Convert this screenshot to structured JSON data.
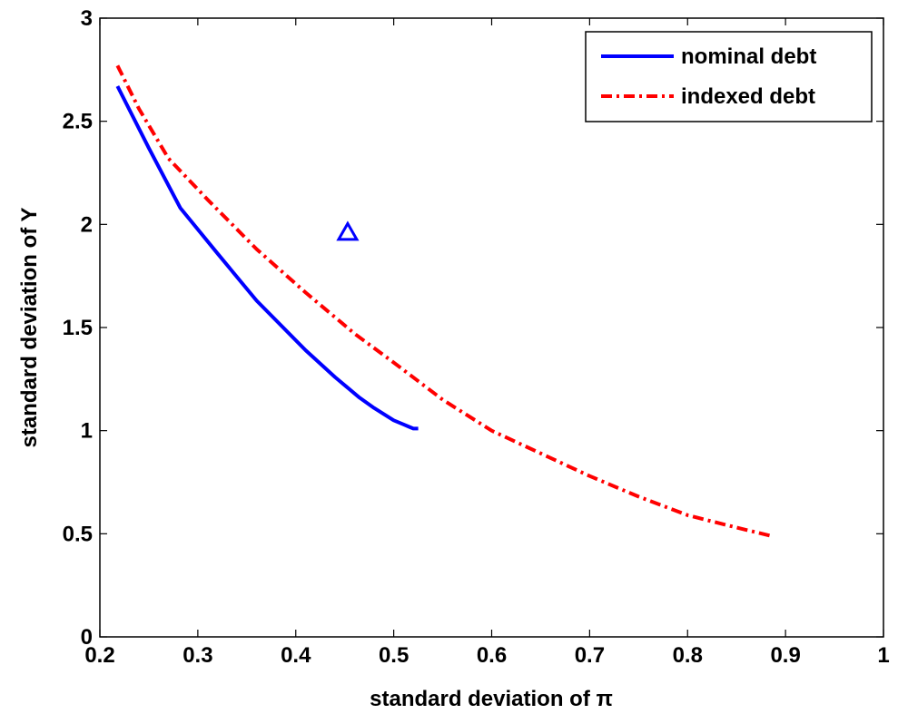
{
  "chart_data": {
    "type": "line",
    "xlabel": "standard deviation of π",
    "ylabel": "standard deviation of Y",
    "xlim": [
      0.2,
      1.0
    ],
    "ylim": [
      0,
      3
    ],
    "xticks": [
      "0.2",
      "0.3",
      "0.4",
      "0.5",
      "0.6",
      "0.7",
      "0.8",
      "0.9",
      "1"
    ],
    "yticks": [
      "0",
      "0.5",
      "1",
      "1.5",
      "2",
      "2.5",
      "3"
    ],
    "grid": false,
    "legend_position": "top-right",
    "series": [
      {
        "name": "nominal debt",
        "color": "#0000ff",
        "style": "solid",
        "x": [
          0.218,
          0.25,
          0.282,
          0.32,
          0.36,
          0.41,
          0.44,
          0.465,
          0.48,
          0.5,
          0.51,
          0.515,
          0.52,
          0.525
        ],
        "y": [
          2.67,
          2.37,
          2.08,
          1.86,
          1.63,
          1.39,
          1.26,
          1.16,
          1.11,
          1.05,
          1.03,
          1.02,
          1.01,
          1.01
        ]
      },
      {
        "name": "indexed debt",
        "color": "#ff0000",
        "style": "dashdot",
        "x": [
          0.218,
          0.24,
          0.27,
          0.31,
          0.36,
          0.41,
          0.46,
          0.5,
          0.55,
          0.6,
          0.65,
          0.7,
          0.75,
          0.8,
          0.85,
          0.885
        ],
        "y": [
          2.77,
          2.56,
          2.32,
          2.12,
          1.88,
          1.67,
          1.47,
          1.33,
          1.15,
          1.0,
          0.89,
          0.78,
          0.68,
          0.59,
          0.53,
          0.49
        ]
      }
    ],
    "markers": [
      {
        "shape": "triangle",
        "color": "#0000ff",
        "x": 0.453,
        "y": 1.96
      }
    ]
  }
}
